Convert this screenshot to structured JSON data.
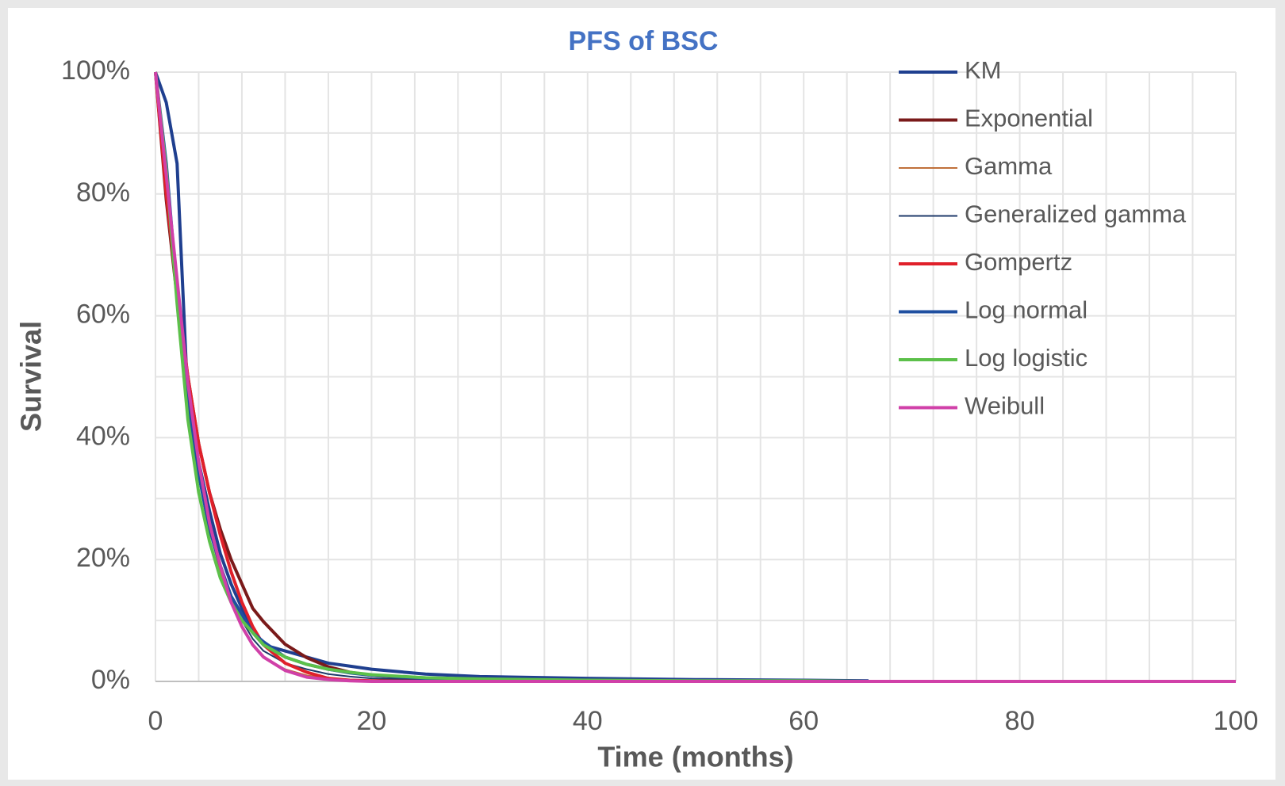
{
  "chart_data": {
    "type": "line",
    "title": "PFS of BSC",
    "x_label": "Time (months)",
    "y_label": "Survival",
    "x": [
      0,
      1,
      2,
      3,
      4,
      5,
      6,
      7,
      8,
      9,
      10,
      12,
      14,
      16,
      18,
      20,
      25,
      30,
      40,
      50,
      60,
      66,
      70,
      80,
      90,
      100
    ],
    "series": [
      {
        "name": "KM",
        "color": "#1f3f8f",
        "width": 4,
        "values": [
          100,
          95,
          85,
          46,
          36,
          28,
          21,
          16,
          12,
          8,
          6,
          5,
          4,
          3,
          2.5,
          2,
          1.2,
          0.8,
          0.5,
          0.3,
          0.2,
          0.1,
          null,
          null,
          null,
          null
        ]
      },
      {
        "name": "Exponential",
        "color": "#7a1a1a",
        "width": 4,
        "values": [
          100,
          79,
          63,
          50,
          39,
          31,
          25,
          20,
          16,
          12,
          9.8,
          6.1,
          3.9,
          2.4,
          1.5,
          1,
          0.3,
          0.1,
          0,
          0,
          0,
          0,
          0,
          0,
          0,
          0
        ]
      },
      {
        "name": "Gamma",
        "color": "#c0703a",
        "width": 2,
        "values": [
          100,
          82,
          64,
          48,
          35,
          25,
          18,
          13,
          9,
          6,
          4,
          2,
          1,
          0.5,
          0.3,
          0.2,
          0,
          0,
          0,
          0,
          0,
          0,
          0,
          0,
          0,
          0
        ]
      },
      {
        "name": "Generalized gamma",
        "color": "#1f3a6a",
        "width": 2,
        "values": [
          100,
          83,
          65,
          48,
          35,
          26,
          19,
          14,
          10,
          7,
          5,
          3,
          2,
          1.2,
          0.8,
          0.5,
          0.2,
          0.1,
          0,
          0,
          0,
          0,
          0,
          0,
          0,
          0
        ]
      },
      {
        "name": "Gompertz",
        "color": "#e0202a",
        "width": 4,
        "values": [
          100,
          80,
          64,
          50,
          39,
          31,
          24,
          18,
          13,
          9,
          6,
          3,
          1.5,
          0.5,
          0.2,
          0.1,
          0,
          0,
          0,
          0,
          0,
          0,
          0,
          0,
          0,
          0
        ]
      },
      {
        "name": "Log normal",
        "color": "#1f4fa0",
        "width": 4,
        "values": [
          100,
          85,
          64,
          46,
          34,
          25,
          19,
          14,
          11,
          8,
          6.5,
          4,
          2.8,
          2,
          1.4,
          1,
          0.5,
          0.3,
          0.1,
          0.05,
          0,
          0,
          0,
          0,
          0,
          0
        ]
      },
      {
        "name": "Log logistic",
        "color": "#5cc04a",
        "width": 4,
        "values": [
          100,
          84,
          62,
          43,
          31,
          23,
          17,
          13,
          10,
          8,
          6,
          4,
          2.8,
          2,
          1.5,
          1.1,
          0.6,
          0.4,
          0.2,
          0.1,
          0.1,
          0,
          0,
          0,
          0,
          0
        ]
      },
      {
        "name": "Weibull",
        "color": "#d040a8",
        "width": 4,
        "values": [
          100,
          83,
          66,
          49,
          36,
          26,
          19,
          13,
          9,
          6,
          4,
          1.8,
          0.7,
          0.3,
          0.1,
          0,
          0,
          0,
          0,
          0,
          0,
          0,
          0,
          0,
          0,
          0
        ]
      }
    ],
    "xlim": [
      0,
      100
    ],
    "xticks": [
      0,
      20,
      40,
      60,
      80,
      100
    ],
    "ylim": [
      0,
      100
    ],
    "yticks": [
      {
        "value": 0,
        "label": "0%"
      },
      {
        "value": 20,
        "label": "20%"
      },
      {
        "value": 40,
        "label": "40%"
      },
      {
        "value": 60,
        "label": "60%"
      },
      {
        "value": 80,
        "label": "80%"
      },
      {
        "value": 100,
        "label": "100%"
      }
    ],
    "x_grid": [
      0,
      4,
      8,
      12,
      16,
      20,
      24,
      28,
      32,
      36,
      40,
      44,
      48,
      52,
      56,
      60,
      64,
      68,
      72,
      76,
      80,
      84,
      88,
      92,
      96,
      100
    ],
    "y_grid": [
      0,
      10,
      20,
      30,
      40,
      50,
      60,
      70,
      80,
      90,
      100
    ],
    "legend": "top-right"
  }
}
